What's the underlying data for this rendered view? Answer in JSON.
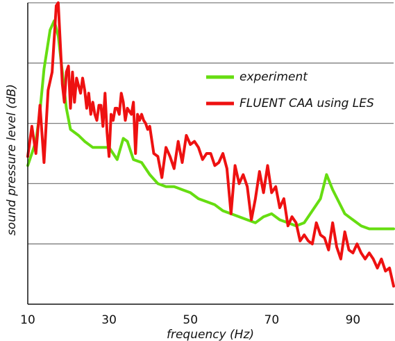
{
  "chart_data": {
    "type": "line",
    "title": "",
    "xlabel": "frequency (Hz)",
    "ylabel": "sound pressure level (dB)",
    "xlim": [
      10,
      100
    ],
    "ylim": [
      0,
      5
    ],
    "x_ticks": [
      10,
      30,
      50,
      70,
      90
    ],
    "y_ticks_labeled": false,
    "grid": "horizontal",
    "legend_position": "top-right",
    "colors": {
      "experiment": "#66dd11",
      "les": "#ee1111",
      "grid": "#7d7d7d",
      "axis": "#111111"
    },
    "series": [
      {
        "name": "experiment",
        "x": [
          10,
          12,
          13,
          14,
          15.5,
          16.5,
          17.5,
          18.5,
          19.5,
          20.5,
          21.5,
          22.5,
          24,
          26,
          28,
          30,
          32,
          33.5,
          34.5,
          36,
          38,
          40,
          42,
          44,
          46,
          48,
          50,
          52,
          54,
          56,
          58,
          60,
          62,
          64,
          66,
          68,
          70,
          72,
          74,
          76,
          78,
          80,
          82,
          83.5,
          85,
          86.5,
          88,
          90,
          92,
          94,
          96,
          98,
          100
        ],
        "y": [
          2.3,
          2.7,
          3.2,
          3.9,
          4.55,
          4.7,
          4.45,
          3.85,
          3.25,
          2.9,
          2.85,
          2.8,
          2.7,
          2.6,
          2.6,
          2.6,
          2.4,
          2.75,
          2.7,
          2.4,
          2.35,
          2.15,
          2.0,
          1.95,
          1.95,
          1.9,
          1.85,
          1.75,
          1.7,
          1.65,
          1.55,
          1.5,
          1.45,
          1.4,
          1.35,
          1.45,
          1.5,
          1.4,
          1.35,
          1.3,
          1.35,
          1.55,
          1.75,
          2.15,
          1.9,
          1.7,
          1.5,
          1.4,
          1.3,
          1.25,
          1.25,
          1.25,
          1.25
        ]
      },
      {
        "name": "FLUENT CAA using LES",
        "x": [
          10,
          11,
          12,
          13,
          14,
          15,
          16,
          17,
          17.5,
          18.5,
          19,
          19.5,
          20,
          20.5,
          21,
          21.5,
          22,
          23,
          23.5,
          24,
          24.5,
          25,
          25.5,
          26,
          26.5,
          27,
          27.5,
          28,
          28.5,
          29,
          29.5,
          30,
          30.5,
          31,
          31.5,
          32,
          32.5,
          33,
          33.5,
          34,
          34.5,
          35,
          35.5,
          36,
          36.5,
          37,
          37.5,
          38,
          38.5,
          39,
          39.5,
          40,
          41,
          42,
          43,
          44,
          45,
          46,
          47,
          48,
          49,
          50,
          51,
          52,
          53,
          54,
          55,
          56,
          57,
          58,
          59,
          60,
          61,
          62,
          63,
          64,
          65,
          66,
          67,
          68,
          69,
          70,
          71,
          72,
          73,
          74,
          75,
          76,
          77,
          78,
          79,
          80,
          81,
          82,
          83,
          84,
          85,
          86,
          87,
          88,
          89,
          90,
          91,
          92,
          93,
          94,
          95,
          96,
          97,
          98,
          99,
          100
        ],
        "y": [
          2.45,
          2.95,
          2.5,
          3.3,
          2.35,
          3.55,
          3.85,
          4.95,
          5.0,
          3.65,
          3.35,
          3.85,
          3.95,
          3.25,
          3.85,
          3.35,
          3.75,
          3.5,
          3.75,
          3.55,
          3.25,
          3.5,
          3.15,
          3.35,
          3.15,
          3.05,
          3.3,
          3.3,
          2.95,
          3.5,
          2.85,
          2.45,
          3.15,
          3.05,
          3.25,
          3.25,
          3.15,
          3.5,
          3.35,
          3.05,
          3.25,
          3.2,
          3.15,
          3.35,
          2.5,
          3.15,
          3.05,
          3.15,
          3.05,
          3.0,
          2.9,
          2.95,
          2.5,
          2.45,
          2.1,
          2.6,
          2.45,
          2.25,
          2.7,
          2.35,
          2.8,
          2.65,
          2.7,
          2.6,
          2.4,
          2.5,
          2.5,
          2.3,
          2.35,
          2.5,
          2.25,
          1.5,
          2.3,
          2.0,
          2.15,
          1.95,
          1.4,
          1.75,
          2.2,
          1.85,
          2.3,
          1.85,
          1.95,
          1.6,
          1.75,
          1.3,
          1.45,
          1.35,
          1.05,
          1.15,
          1.05,
          1.0,
          1.35,
          1.15,
          1.1,
          0.9,
          1.35,
          0.95,
          0.75,
          1.2,
          0.9,
          0.85,
          1.0,
          0.85,
          0.75,
          0.85,
          0.75,
          0.6,
          0.75,
          0.55,
          0.6,
          0.3
        ]
      }
    ]
  }
}
